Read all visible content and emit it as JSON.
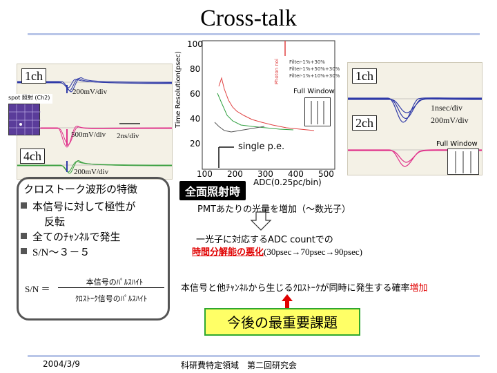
{
  "slide": {
    "title": "Cross-talk"
  },
  "left_scope": {
    "ch1_label": "1ch",
    "ch1_scale": "200mV/div",
    "spot_label": "spot 照射 (Ch2)",
    "ch2_scale": "500mV/div",
    "time_scale": "2ns/div",
    "ch4_label": "4ch",
    "ch4_scale": "200mV/div"
  },
  "graph": {
    "ylabel": "Time Resolution(psec)",
    "yticks": [
      "100",
      "80",
      "60",
      "40",
      "20"
    ],
    "xticks": [
      "100",
      "200",
      "300",
      "400",
      "500"
    ],
    "xlabel": "ADC(0.25pc/bin)",
    "legend": [
      "Filter-1%+30%",
      "Filter-1%+50%+30%",
      "Filter-1%+10%+30%"
    ],
    "side_label": "Photon noi",
    "full_window": "Full Window",
    "single_pe": "single p.e."
  },
  "right_scope": {
    "ch1_label": "1ch",
    "time_scale": "1nsec/div",
    "ch2_label": "2ch",
    "v_scale": "200mV/div",
    "full_window": "Full Window"
  },
  "features": {
    "heading": "クロストーク波形の特徴",
    "items": [
      "本信号に対して極性が",
      "反転",
      "全てのﾁｬﾝﾈﾙで発生",
      "S/N～３－５"
    ],
    "formula_lhs": "S/N ＝",
    "formula_num": "本信号のﾊﾟﾙｽﾊｲﾄ",
    "formula_den": "ｸﾛｽﾄｰｸ信号のﾊﾟﾙｽﾊｲﾄ"
  },
  "full_illum": {
    "tag": "全面照射時",
    "line1": "PMTあたりの光量を増加（～数光子）",
    "line2": "一光子に対応するADC countでの",
    "line3_red": "時間分解能の悪化",
    "line3_rest": "(30psec→70psec→90psec)",
    "line4_main": "本信号と他ﾁｬﾝﾈﾙから生じるｸﾛｽﾄｰｸが同時に発生する確率",
    "line4_red": "増加"
  },
  "notice": {
    "text": "今後の最重要課題"
  },
  "footer": {
    "date": "2004/3/9",
    "event": "科研費特定領域　第二回研究会"
  },
  "colors": {
    "trace_blue": "#2f3aa8",
    "trace_magenta": "#e0308a",
    "trace_green": "#3aa040",
    "arrow_red": "#e00000",
    "notice_bg": "#ffff66",
    "notice_border": "#2fa82f"
  }
}
